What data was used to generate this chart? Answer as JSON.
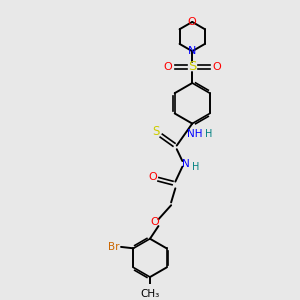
{
  "bg_color": "#e8e8e8",
  "line_color": "#000000",
  "fig_width": 3.0,
  "fig_height": 3.0,
  "dpi": 100,
  "atom_colors": {
    "O": "#ff0000",
    "N": "#0000ff",
    "S": "#cccc00",
    "Br": "#cc6600",
    "C": "#000000",
    "H": "#008080"
  }
}
